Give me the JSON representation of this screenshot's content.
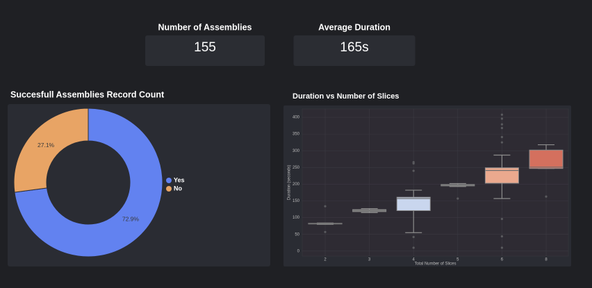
{
  "kpis": [
    {
      "label": "Number of Assemblies",
      "value": "155"
    },
    {
      "label": "Average Duration",
      "value": "165s"
    }
  ],
  "chart_data": [
    {
      "type": "pie",
      "title": "Succesfull Assemblies Record Count",
      "categories": [
        "Yes",
        "No"
      ],
      "values": [
        72.9,
        27.1
      ],
      "value_labels": [
        "72.9%",
        "27.1%"
      ],
      "colors": [
        "#6282f0",
        "#e8a465"
      ],
      "legend": "right"
    },
    {
      "type": "box",
      "title": "Duration vs Number of Slices",
      "xlabel": "Total Number of Slices",
      "ylabel": "Duration (seconds)",
      "categories": [
        "2",
        "3",
        "4",
        "5",
        "6",
        "8"
      ],
      "colors": [
        "#6e6e6e",
        "#8a8a8a",
        "#c9d6ee",
        "#e6e6e6",
        "#eba98e",
        "#d4705e"
      ],
      "boxes": [
        {
          "min": 80,
          "q1": 81,
          "median": 82,
          "q3": 83,
          "max": 84,
          "outliers": [
            57,
            134
          ]
        },
        {
          "min": 115,
          "q1": 118,
          "median": 121,
          "q3": 124,
          "max": 127,
          "outliers": []
        },
        {
          "min": 55,
          "q1": 121,
          "median": 157,
          "q3": 161,
          "max": 182,
          "outliers": [
            266,
            262,
            240,
            42,
            10
          ]
        },
        {
          "min": 193,
          "q1": 195,
          "median": 197,
          "q3": 199,
          "max": 202,
          "outliers": [
            157
          ]
        },
        {
          "min": 157,
          "q1": 203,
          "median": 241,
          "q3": 249,
          "max": 287,
          "outliers": [
            408,
            396,
            379,
            368,
            341,
            325,
            96,
            44,
            10
          ]
        },
        {
          "min": 247,
          "q1": 247,
          "median": 251,
          "q3": 302,
          "max": 318,
          "outliers": [
            163
          ]
        }
      ],
      "ylim": [
        -15,
        425
      ],
      "yticks": [
        0,
        50,
        100,
        150,
        200,
        250,
        300,
        350,
        400
      ],
      "grid": true
    }
  ]
}
